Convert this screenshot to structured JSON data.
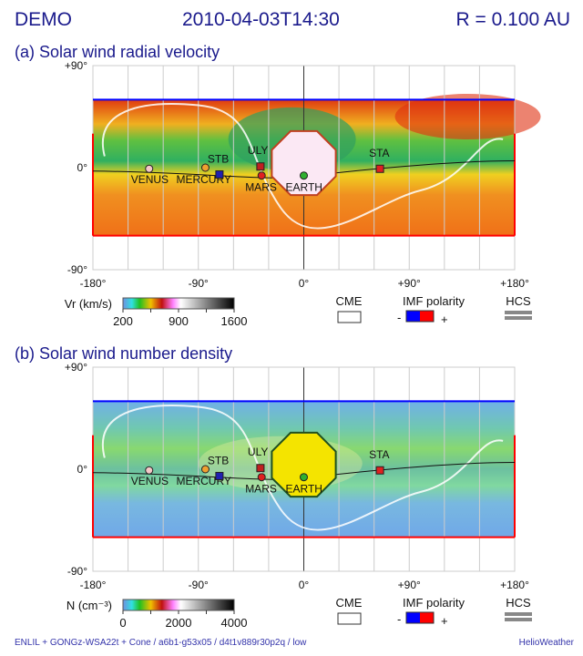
{
  "header": {
    "left": "DEMO",
    "center": "2010-04-03T14:30",
    "right": "R = 0.100 AU"
  },
  "footer": {
    "left": "ENLIL + GONGz-WSA22t + Cone / a6b1-g53x05 / d4t1v889r30p2q / low",
    "right": "HelioWeather"
  },
  "colors": {
    "title": "#1a1a8c",
    "imf_negative": "#0000ff",
    "imf_positive": "#ff0000",
    "hcs": "#888888"
  },
  "chart_data": [
    {
      "type": "heatmap",
      "title": "(a) Solar wind radial velocity",
      "xlim": [
        -180,
        180
      ],
      "ylim": [
        -90,
        90
      ],
      "xticks": [
        "-180°",
        "-90°",
        "0°",
        "+90°",
        "+180°"
      ],
      "yticks": [
        "+90°",
        "0°",
        "-90°"
      ],
      "colorbar": {
        "label": "Vr (km/s)",
        "range": [
          200,
          1600
        ],
        "ticks": [
          "200",
          "900",
          "1600"
        ]
      },
      "bodies": [
        {
          "name": "VENUS",
          "lon": -132,
          "lat": -1,
          "marker": "circle",
          "color": "#f4c8c8"
        },
        {
          "name": "MERCURY",
          "lon": -84,
          "lat": 0,
          "marker": "circle",
          "color": "#f0a030"
        },
        {
          "name": "STB",
          "lon": -72,
          "lat": -6,
          "marker": "square",
          "color": "#2020b0"
        },
        {
          "name": "ULY",
          "lon": -37,
          "lat": 1,
          "marker": "square",
          "color": "#c02020"
        },
        {
          "name": "MARS",
          "lon": -36,
          "lat": -7,
          "marker": "circle",
          "color": "#e02020"
        },
        {
          "name": "EARTH",
          "lon": 0,
          "lat": -7,
          "marker": "circle",
          "color": "#30b030"
        },
        {
          "name": "STA",
          "lon": 65,
          "lat": -1,
          "marker": "square",
          "color": "#e02020"
        }
      ]
    },
    {
      "type": "heatmap",
      "title": "(b) Solar wind number density",
      "xlim": [
        -180,
        180
      ],
      "ylim": [
        -90,
        90
      ],
      "xticks": [
        "-180°",
        "-90°",
        "0°",
        "+90°",
        "+180°"
      ],
      "yticks": [
        "+90°",
        "0°",
        "-90°"
      ],
      "colorbar": {
        "label": "N (cm⁻³)",
        "range": [
          0,
          4000
        ],
        "ticks": [
          "0",
          "2000",
          "4000"
        ]
      },
      "bodies": [
        {
          "name": "VENUS",
          "lon": -132,
          "lat": -1,
          "marker": "circle",
          "color": "#f4c8c8"
        },
        {
          "name": "MERCURY",
          "lon": -84,
          "lat": 0,
          "marker": "circle",
          "color": "#f0a030"
        },
        {
          "name": "STB",
          "lon": -72,
          "lat": -6,
          "marker": "square",
          "color": "#2020b0"
        },
        {
          "name": "ULY",
          "lon": -37,
          "lat": 1,
          "marker": "square",
          "color": "#c02020"
        },
        {
          "name": "MARS",
          "lon": -36,
          "lat": -7,
          "marker": "circle",
          "color": "#e02020"
        },
        {
          "name": "EARTH",
          "lon": 0,
          "lat": -7,
          "marker": "circle",
          "color": "#30b030"
        },
        {
          "name": "STA",
          "lon": 65,
          "lat": -1,
          "marker": "square",
          "color": "#e02020"
        }
      ]
    }
  ],
  "legend": {
    "cme": "CME",
    "imf": "IMF polarity",
    "imf_minus": "-",
    "imf_plus": "+",
    "hcs": "HCS"
  }
}
